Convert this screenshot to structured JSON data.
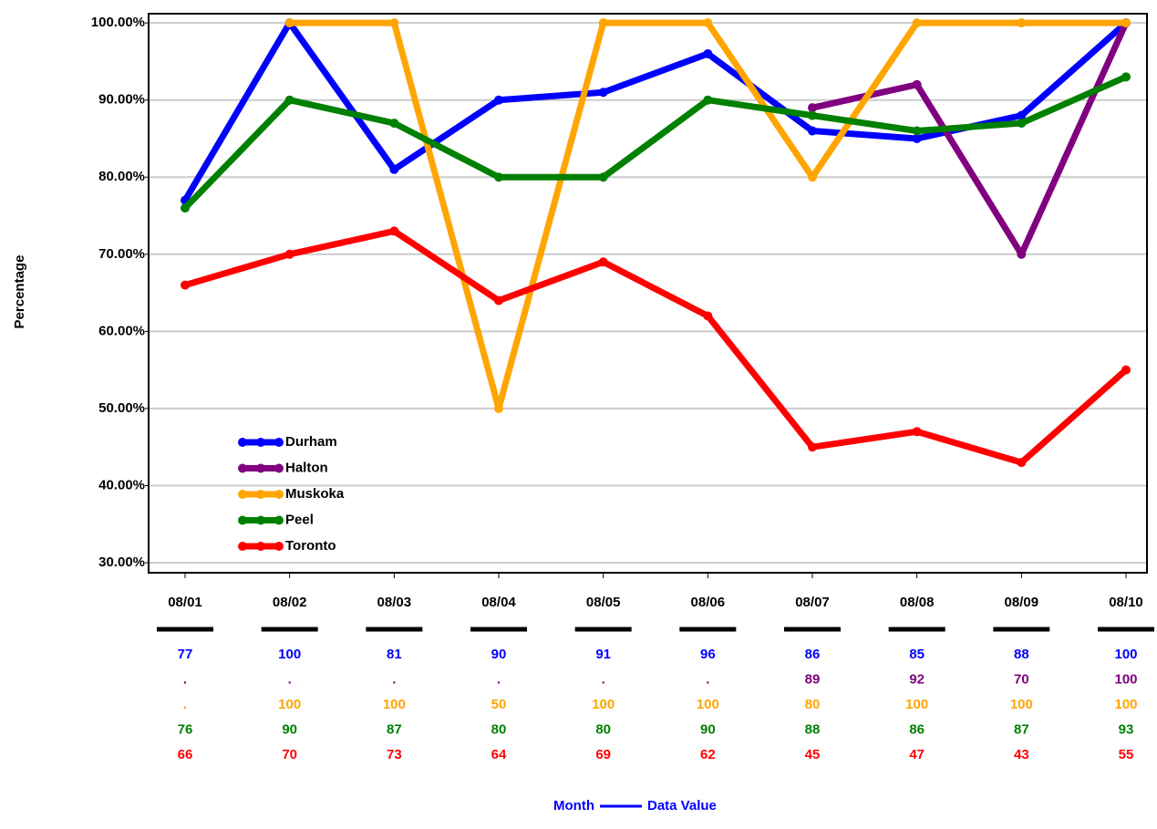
{
  "chart_data": {
    "type": "line",
    "ylabel": "Percentage",
    "xlabel": "Month",
    "table_label": "Data Value",
    "categories": [
      "08/01",
      "08/02",
      "08/03",
      "08/04",
      "08/05",
      "08/06",
      "08/07",
      "08/08",
      "08/09",
      "08/10"
    ],
    "series": [
      {
        "name": "Durham",
        "color": "#0000ff",
        "values": [
          77,
          100,
          81,
          90,
          91,
          96,
          86,
          85,
          88,
          100
        ]
      },
      {
        "name": "Halton",
        "color": "#800080",
        "values": [
          null,
          null,
          null,
          null,
          null,
          null,
          89,
          92,
          70,
          100
        ],
        "value_labels": [
          ".",
          ".",
          ".",
          ".",
          ".",
          ".",
          "89",
          "92",
          "70",
          "100"
        ]
      },
      {
        "name": "Muskoka",
        "color": "#ffa500",
        "values": [
          null,
          100,
          100,
          50,
          100,
          100,
          80,
          100,
          100,
          100
        ],
        "value_labels": [
          ".",
          "100",
          "100",
          "50",
          "100",
          "100",
          "80",
          "100",
          "100",
          "100"
        ]
      },
      {
        "name": "Peel",
        "color": "#008000",
        "values": [
          76,
          90,
          87,
          80,
          80,
          90,
          88,
          86,
          87,
          93
        ]
      },
      {
        "name": "Toronto",
        "color": "#ff0000",
        "values": [
          66,
          70,
          73,
          64,
          69,
          62,
          45,
          47,
          43,
          55
        ]
      }
    ],
    "ylim": [
      28.7,
      101.2
    ],
    "yticks": [
      {
        "value": 30,
        "label": "30.00%"
      },
      {
        "value": 40,
        "label": "40.00%"
      },
      {
        "value": 50,
        "label": "50.00%"
      },
      {
        "value": 60,
        "label": "60.00%"
      },
      {
        "value": 70,
        "label": "70.00%"
      },
      {
        "value": 80,
        "label": "80.00%"
      },
      {
        "value": 90,
        "label": "90.00%"
      },
      {
        "value": 100,
        "label": "100.00%"
      }
    ],
    "grid": true,
    "legend": "lower left"
  }
}
